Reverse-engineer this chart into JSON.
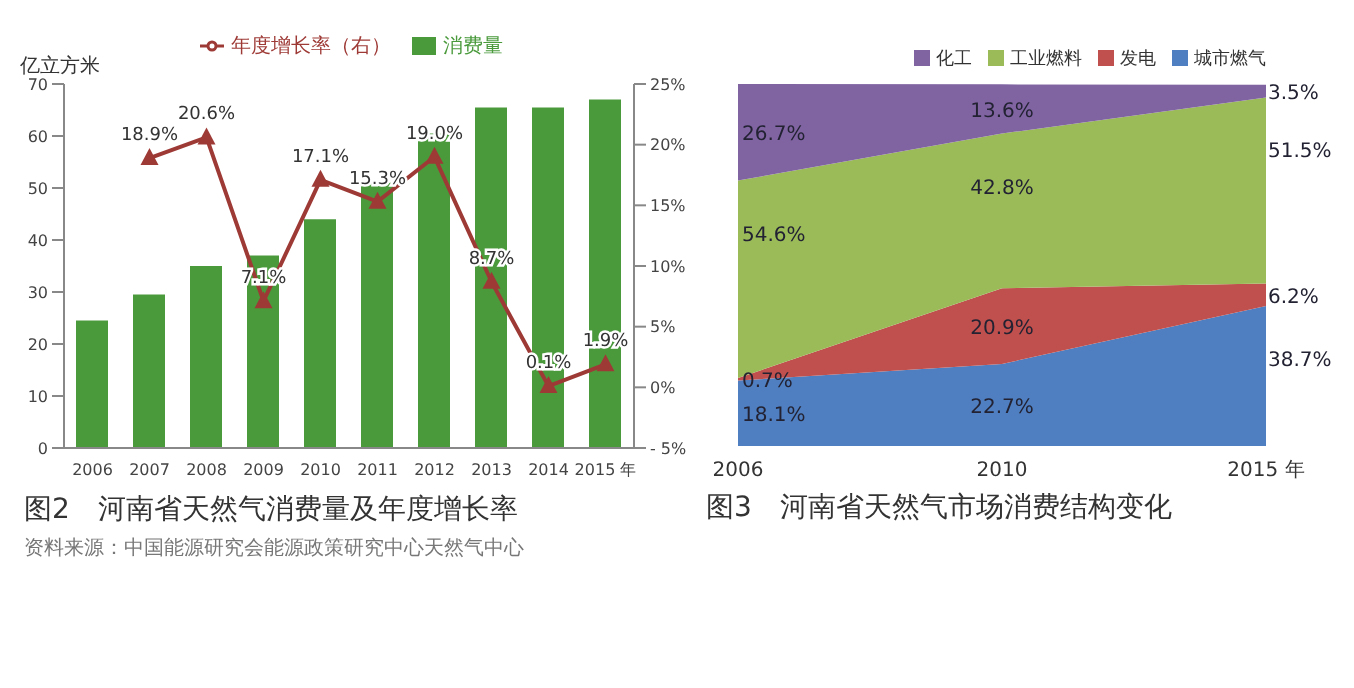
{
  "chart_data": [
    {
      "type": "bar",
      "title": "图2　河南省天然气消费量及年度增长率",
      "ylabel": "亿立方米",
      "annotations": [
        "资料来源：中国能源研究会能源政策研究中心天然气中心"
      ],
      "categories": [
        "2006",
        "2007",
        "2008",
        "2009",
        "2010",
        "2011",
        "2012",
        "2013",
        "2014",
        "2015 年"
      ],
      "series": [
        {
          "name": "消费量",
          "color": "#4a9a3c",
          "values": [
            24.5,
            29.5,
            35,
            37,
            44,
            51,
            60.5,
            65.5,
            65.5,
            67
          ]
        },
        {
          "name": "年度增长率（右）",
          "type": "line",
          "axis": "y2",
          "color": "#9e3a36",
          "values": [
            null,
            18.9,
            20.6,
            7.1,
            17.1,
            15.3,
            19.0,
            8.7,
            0.1,
            1.9
          ],
          "value_labels": [
            null,
            "18.9%",
            "20.6%",
            "7.1%",
            "17.1%",
            "15.3%",
            "19.0%",
            "8.7%",
            "0.1%",
            "1.9%"
          ]
        }
      ],
      "ylim": [
        0,
        70
      ],
      "yticks": [
        0,
        10,
        20,
        30,
        40,
        50,
        60,
        70
      ],
      "y2lim": [
        -5,
        25
      ],
      "y2ticks": [
        {
          "value": -5,
          "label": "- 5%"
        },
        {
          "value": 0,
          "label": "0%"
        },
        {
          "value": 5,
          "label": "5%"
        },
        {
          "value": 10,
          "label": "10%"
        },
        {
          "value": 15,
          "label": "15%"
        },
        {
          "value": 20,
          "label": "20%"
        },
        {
          "value": 25,
          "label": "25%"
        }
      ],
      "marker": "triangle",
      "legend": "top"
    },
    {
      "type": "area",
      "stacked": true,
      "title": "图3　河南省天然气市场消费结构变化",
      "categories": [
        "2006",
        "2010",
        "2015 年"
      ],
      "series": [
        {
          "name": "城市燃气",
          "color": "#4f7fc0",
          "values": [
            18.1,
            22.7,
            38.7
          ],
          "value_labels": [
            "18.1%",
            "22.7%",
            "38.7%"
          ]
        },
        {
          "name": "发电",
          "color": "#c0504d",
          "values": [
            0.7,
            20.9,
            6.2
          ],
          "value_labels": [
            "0.7%",
            "20.9%",
            "6.2%"
          ]
        },
        {
          "name": "工业燃料",
          "color": "#9bbb59",
          "values": [
            54.6,
            42.8,
            51.5
          ],
          "value_labels": [
            "54.6%",
            "42.8%",
            "51.5%"
          ]
        },
        {
          "name": "化工",
          "color": "#8064a2",
          "values": [
            26.7,
            13.6,
            3.5
          ],
          "value_labels": [
            "26.7%",
            "13.6%",
            "3.5%"
          ]
        }
      ],
      "legend": "top right"
    }
  ]
}
